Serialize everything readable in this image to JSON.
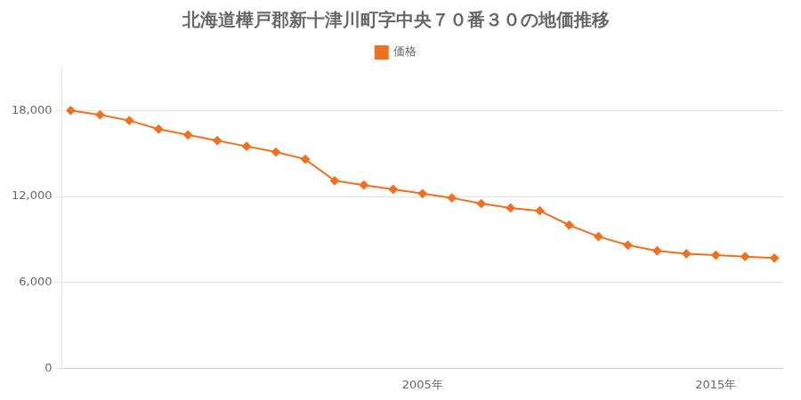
{
  "chart_data": {
    "type": "line",
    "title": "北海道樺戸郡新十津川町字中央７０番３０の地価推移",
    "x": [
      1993,
      1994,
      1995,
      1996,
      1997,
      1998,
      1999,
      2000,
      2001,
      2002,
      2003,
      2004,
      2005,
      2006,
      2007,
      2008,
      2009,
      2010,
      2011,
      2012,
      2013,
      2014,
      2015,
      2016,
      2017
    ],
    "series": [
      {
        "name": "価格",
        "color": "#f07020",
        "marker": "diamond",
        "values": [
          18000,
          17700,
          17300,
          16700,
          16300,
          15900,
          15500,
          15100,
          14600,
          13100,
          12800,
          12500,
          12200,
          11900,
          11500,
          11200,
          11000,
          10000,
          9200,
          8600,
          8200,
          8000,
          7900,
          7800,
          7700
        ]
      }
    ],
    "xlim": [
      1992.7,
      2017.3
    ],
    "xticks": [
      {
        "value": 2005,
        "label": "2005年"
      },
      {
        "value": 2015,
        "label": "2015年"
      }
    ],
    "ylim": [
      0,
      21000
    ],
    "yticks": [
      0,
      {
        "value": 6000,
        "label": "6,000"
      },
      {
        "value": 12000,
        "label": "12,000"
      },
      {
        "value": 18000,
        "label": "18,000"
      }
    ],
    "grid": "y",
    "legend": "top"
  }
}
